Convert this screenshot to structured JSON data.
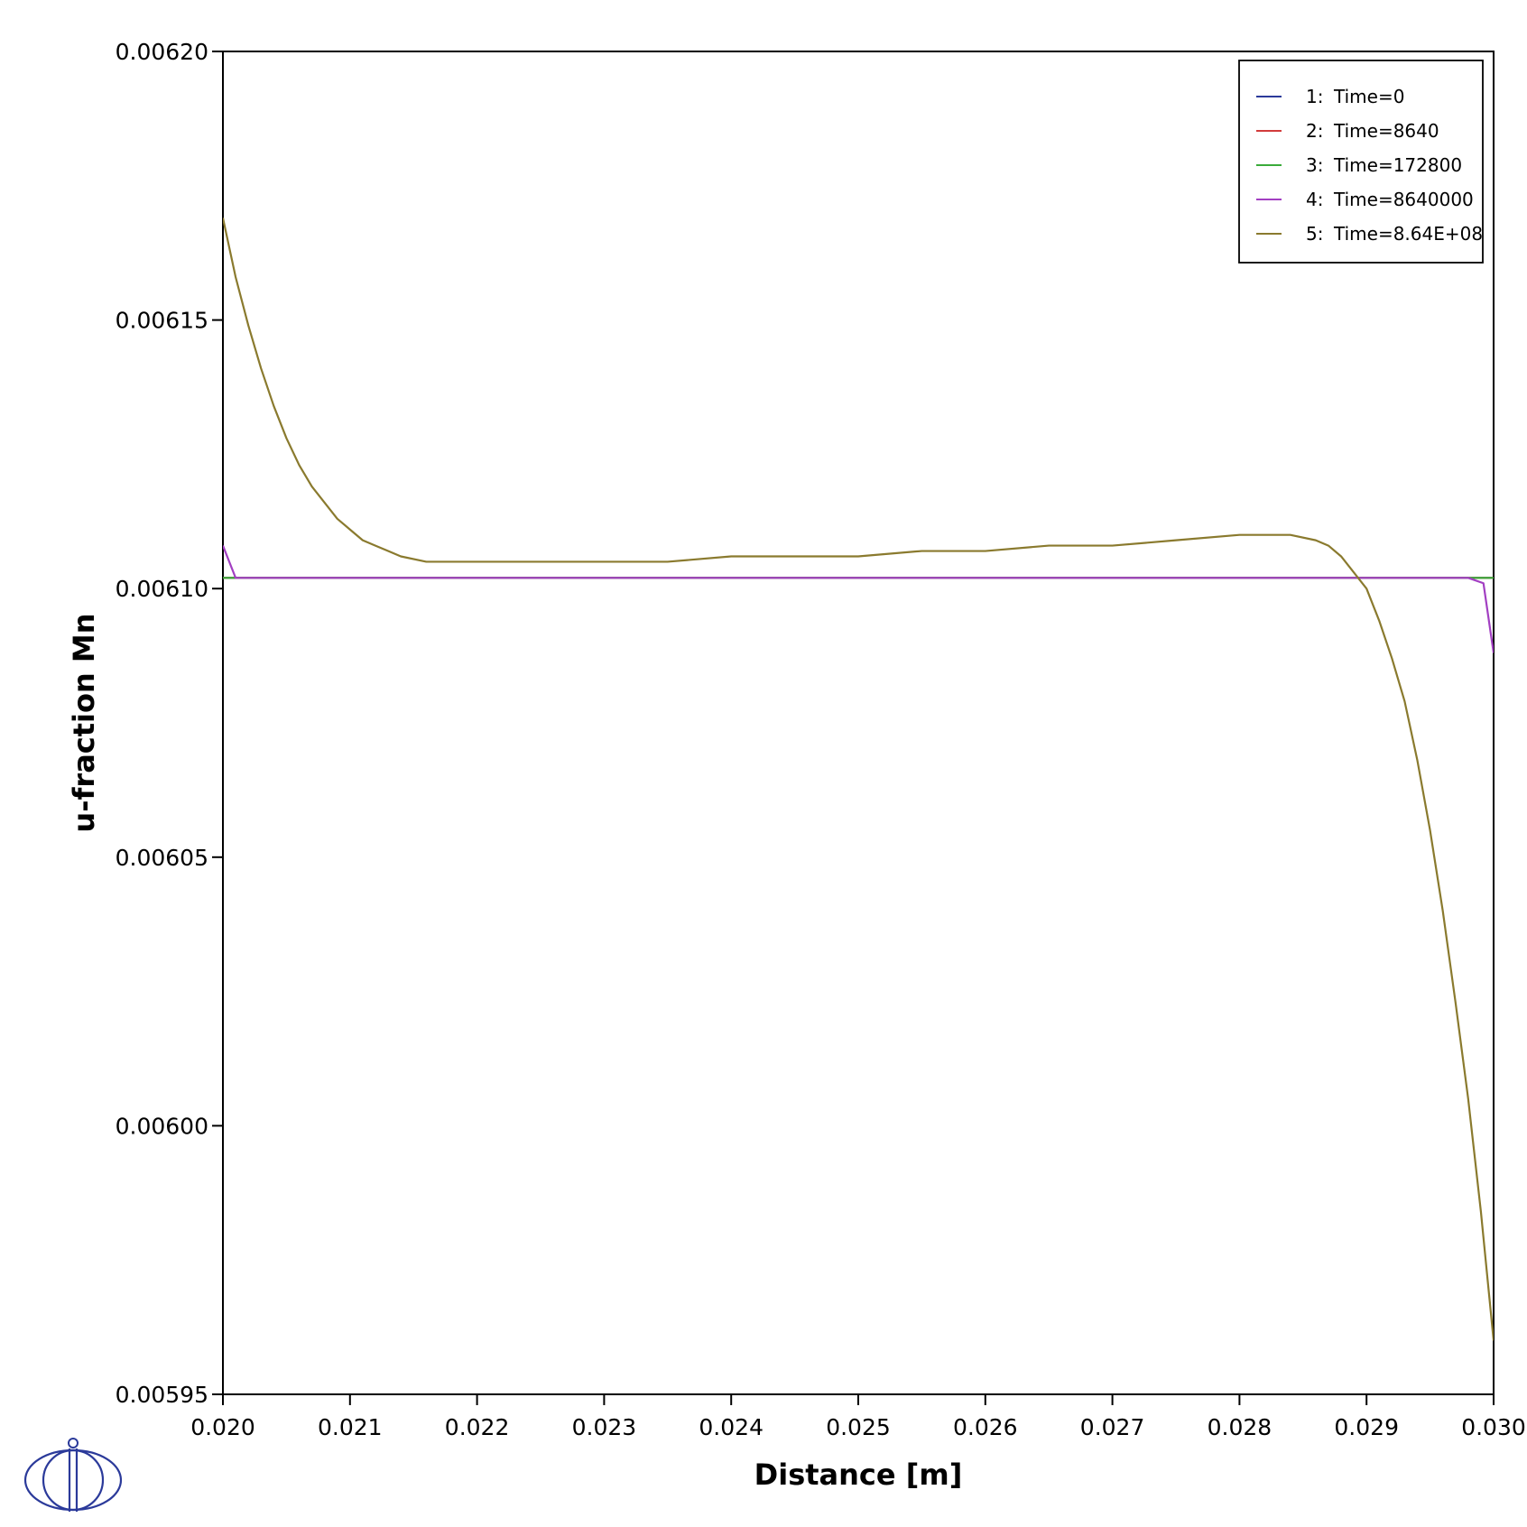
{
  "chart_data": {
    "type": "line",
    "title": "",
    "xlabel": "Distance [m]",
    "ylabel": "u-fraction Mn",
    "xlim": [
      0.02,
      0.03
    ],
    "ylim": [
      0.00595,
      0.0062
    ],
    "x_ticks": [
      0.02,
      0.021,
      0.022,
      0.023,
      0.024,
      0.025,
      0.026,
      0.027,
      0.028,
      0.029,
      0.03
    ],
    "x_tick_labels": [
      "0.020",
      "0.021",
      "0.022",
      "0.023",
      "0.024",
      "0.025",
      "0.026",
      "0.027",
      "0.028",
      "0.029",
      "0.030"
    ],
    "y_ticks": [
      0.00595,
      0.006,
      0.00605,
      0.0061,
      0.00615,
      0.0062
    ],
    "y_tick_labels": [
      "0.00595",
      "0.00600",
      "0.00605",
      "0.00610",
      "0.00615",
      "0.00620"
    ],
    "grid": false,
    "legend_position": "top-right",
    "series": [
      {
        "name": "Time=0",
        "index_label": "1:",
        "color": "#2b3a9a",
        "points": [
          [
            0.02,
            0.006102
          ],
          [
            0.03,
            0.006102
          ]
        ]
      },
      {
        "name": "Time=8640",
        "index_label": "2:",
        "color": "#d23b3b",
        "points": [
          [
            0.02,
            0.006102
          ],
          [
            0.03,
            0.006102
          ]
        ]
      },
      {
        "name": "Time=172800",
        "index_label": "3:",
        "color": "#3aab3a",
        "points": [
          [
            0.02,
            0.006102
          ],
          [
            0.03,
            0.006102
          ]
        ]
      },
      {
        "name": "Time=8640000",
        "index_label": "4:",
        "color": "#a23fc2",
        "points": [
          [
            0.02,
            0.006108
          ],
          [
            0.0201,
            0.006102
          ],
          [
            0.0298,
            0.006102
          ],
          [
            0.02992,
            0.006101
          ],
          [
            0.03,
            0.006088
          ]
        ]
      },
      {
        "name": "Time=8.64E+08",
        "index_label": "5:",
        "color": "#8a7a2e",
        "points": [
          [
            0.02,
            0.006169
          ],
          [
            0.0201,
            0.006158
          ],
          [
            0.0202,
            0.006149
          ],
          [
            0.0203,
            0.006141
          ],
          [
            0.0204,
            0.006134
          ],
          [
            0.0205,
            0.006128
          ],
          [
            0.0206,
            0.006123
          ],
          [
            0.0207,
            0.006119
          ],
          [
            0.0208,
            0.006116
          ],
          [
            0.0209,
            0.006113
          ],
          [
            0.021,
            0.006111
          ],
          [
            0.0211,
            0.006109
          ],
          [
            0.0212,
            0.006108
          ],
          [
            0.0213,
            0.006107
          ],
          [
            0.0214,
            0.006106
          ],
          [
            0.0216,
            0.006105
          ],
          [
            0.0218,
            0.006105
          ],
          [
            0.022,
            0.006105
          ],
          [
            0.0225,
            0.006105
          ],
          [
            0.023,
            0.006105
          ],
          [
            0.0235,
            0.006105
          ],
          [
            0.024,
            0.006106
          ],
          [
            0.0245,
            0.006106
          ],
          [
            0.025,
            0.006106
          ],
          [
            0.0255,
            0.006107
          ],
          [
            0.026,
            0.006107
          ],
          [
            0.0265,
            0.006108
          ],
          [
            0.027,
            0.006108
          ],
          [
            0.0275,
            0.006109
          ],
          [
            0.028,
            0.00611
          ],
          [
            0.0282,
            0.00611
          ],
          [
            0.0284,
            0.00611
          ],
          [
            0.0286,
            0.006109
          ],
          [
            0.0287,
            0.006108
          ],
          [
            0.0288,
            0.006106
          ],
          [
            0.0289,
            0.006103
          ],
          [
            0.029,
            0.0061
          ],
          [
            0.0291,
            0.006094
          ],
          [
            0.0292,
            0.006087
          ],
          [
            0.0293,
            0.006079
          ],
          [
            0.0294,
            0.006068
          ],
          [
            0.0295,
            0.006055
          ],
          [
            0.0296,
            0.00604
          ],
          [
            0.0297,
            0.006023
          ],
          [
            0.0298,
            0.006005
          ],
          [
            0.0299,
            0.005984
          ],
          [
            0.03,
            0.00596
          ]
        ]
      }
    ]
  },
  "logo": {
    "name": "Thermo-Calc logo"
  }
}
